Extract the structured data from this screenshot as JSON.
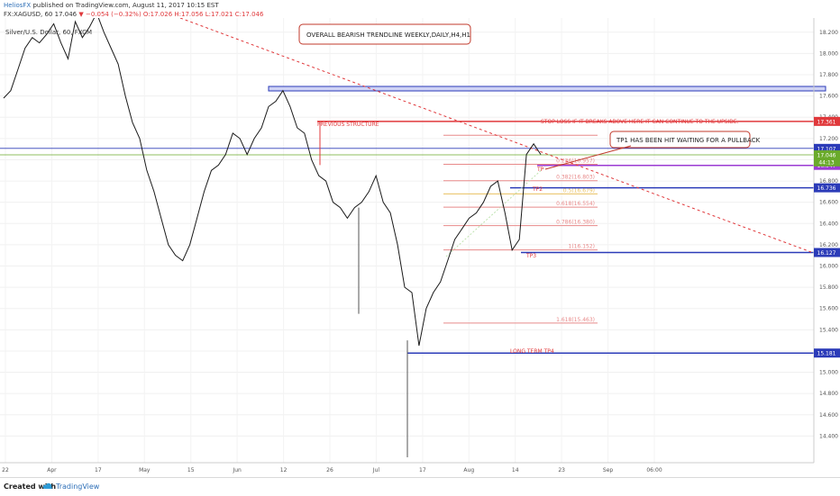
{
  "header": {
    "author": "HeliosFX",
    "published": "published on TradingView.com, August 11, 2017 10:15 EST",
    "symbol": "FX:XAGUSD, 60",
    "price": "17.046",
    "change": "−0.054 (−0.32%)",
    "ohlc": "O:17.026 H:17.056 L:17.021 C:17.046"
  },
  "chart_data": {
    "type": "line",
    "series_title": "Silver/U.S. Dollar, 60, FXCM",
    "ylim": [
      14.2,
      18.3
    ],
    "y_ticks": [
      "18.200",
      "18.000",
      "17.800",
      "17.600",
      "17.400",
      "17.200",
      "17.000",
      "16.800",
      "16.600",
      "16.400",
      "16.200",
      "16.000",
      "15.800",
      "15.600",
      "15.400",
      "15.200",
      "15.000",
      "14.800",
      "14.600",
      "14.400"
    ],
    "x_ticks": [
      "22",
      "Apr",
      "17",
      "May",
      "15",
      "Jun",
      "12",
      "26",
      "Jul",
      "17",
      "Aug",
      "14",
      "23",
      "Sep",
      "06:00"
    ],
    "x": [
      0,
      8,
      16,
      24,
      32,
      40,
      48,
      56,
      64,
      72,
      80,
      88,
      96,
      104,
      112,
      120,
      128,
      136,
      144,
      152,
      160,
      168,
      176,
      184,
      192,
      200,
      208,
      216,
      224,
      232,
      240,
      248,
      256,
      264,
      272,
      280,
      288,
      296,
      304,
      312,
      320,
      328,
      336,
      344,
      352,
      360,
      368,
      376,
      384,
      392,
      400,
      408,
      416,
      424,
      432,
      440,
      448,
      456,
      464,
      472,
      480,
      488,
      496,
      504,
      512,
      520,
      528,
      536,
      544,
      552,
      560,
      568,
      576,
      584,
      592,
      600
    ],
    "price": [
      17.58,
      17.65,
      17.85,
      18.05,
      18.15,
      18.1,
      18.18,
      18.28,
      18.1,
      17.95,
      18.3,
      18.15,
      18.25,
      18.38,
      18.2,
      18.05,
      17.9,
      17.6,
      17.35,
      17.2,
      16.9,
      16.7,
      16.45,
      16.2,
      16.1,
      16.05,
      16.2,
      16.45,
      16.7,
      16.9,
      16.95,
      17.05,
      17.25,
      17.2,
      17.05,
      17.2,
      17.3,
      17.5,
      17.55,
      17.65,
      17.5,
      17.3,
      17.25,
      17.0,
      16.85,
      16.8,
      16.6,
      16.55,
      16.45,
      16.55,
      16.6,
      16.7,
      16.85,
      16.6,
      16.5,
      16.2,
      15.8,
      15.75,
      15.25,
      15.6,
      15.75,
      15.85,
      16.05,
      16.25,
      16.35,
      16.45,
      16.5,
      16.6,
      16.75,
      16.8,
      16.5,
      16.15,
      16.25,
      17.05,
      17.15,
      17.05
    ],
    "annotations": {
      "trendline_label": "OVERALL BEARISH TRENDLINE WEEKLY,DAILY,H4,H1",
      "tp1_callout": "TP1 HAS BEEN HIT WAITING FOR A PULLBACK",
      "previous_structure": "PREVIOUS STRUCTURE",
      "stop_loss": "STOP LOSS IF IT BREAKS ABOVE HERE IT CAN CONTINUE TO THE UPSIDE.",
      "long_term_tp": "LONG TERM TP4",
      "tp2": "TP2",
      "tp3": "TP3",
      "tp_marker": "TP"
    },
    "levels": [
      {
        "price": 17.361,
        "label": "17.361",
        "color": "#e0383b"
      },
      {
        "price": 17.107,
        "label": "17.107",
        "color": "#2b3bb8"
      },
      {
        "price": 17.046,
        "label": "17.046",
        "color": "#6aaa2a"
      },
      {
        "price": 16.947,
        "label": "16.947",
        "color": "#9b3bd3"
      },
      {
        "price": 16.736,
        "label": "16.736",
        "color": "#2b3bb8"
      },
      {
        "price": 16.127,
        "label": "16.127",
        "color": "#2b3bb8"
      },
      {
        "price": 15.181,
        "label": "15.181",
        "color": "#2b3bb8"
      }
    ],
    "misc_price_tags": [
      {
        "label": "44:13",
        "color": "#6aaa2a"
      }
    ],
    "fib_labels": [
      "0.236(16.957)",
      "0.382(16.803)",
      "0.5(16.679)",
      "0.618(16.554)",
      "0.786(16.380)",
      "1(16.152)",
      "1.618(15.463)"
    ],
    "grid": true,
    "colors": {
      "price_line": "#1a1a1a",
      "trendline": "#e0383b",
      "zone": "#2b3bb8",
      "fib": "#e88a8a",
      "fib_mid": "#e8c060"
    }
  },
  "footer": {
    "created": "Created with",
    "brand": "TradingView"
  }
}
